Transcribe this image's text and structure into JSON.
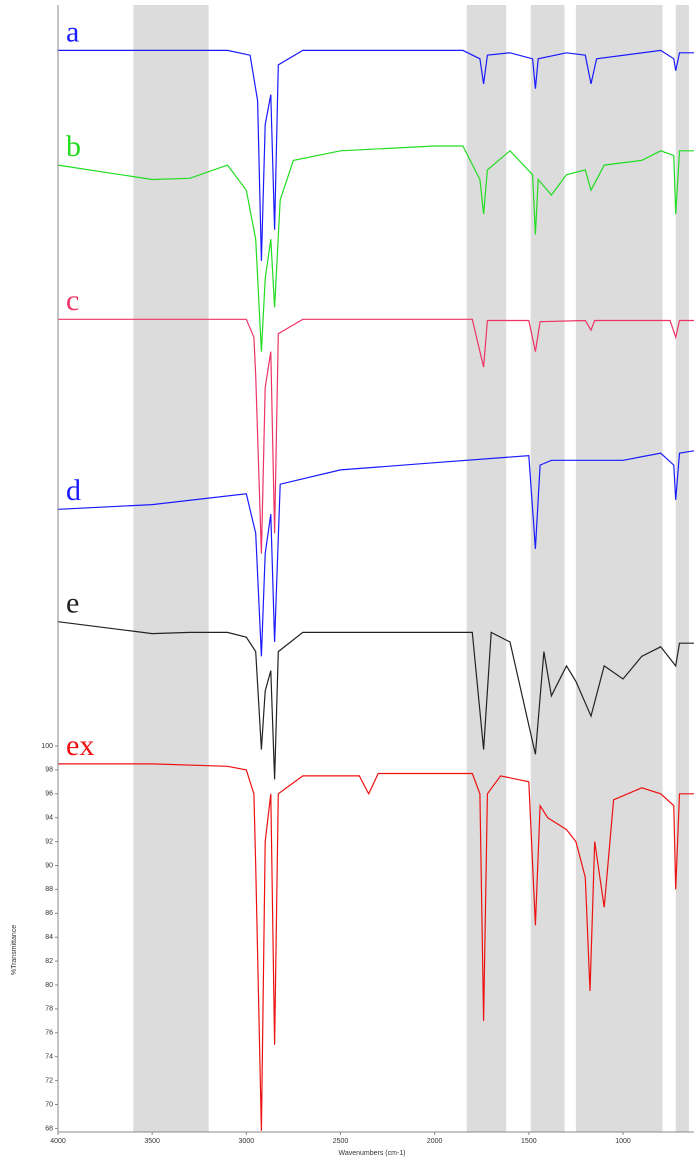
{
  "chart_data": {
    "type": "line",
    "xlabel": "Wavenumbers (cm-1)",
    "ylabel": "%Transmittance",
    "xlim": [
      4000,
      623
    ],
    "ylim": [
      67.7,
      162
    ],
    "xticks": [
      4000,
      3500,
      3000,
      2500,
      2000,
      1500,
      1000
    ],
    "yticks": [
      68,
      70,
      72,
      74,
      76,
      78,
      80,
      82,
      84,
      86,
      88,
      90,
      92,
      94,
      96,
      98,
      100
    ],
    "shaded_bands": [
      [
        3600,
        3200
      ],
      [
        1830,
        1620
      ],
      [
        1490,
        1310
      ],
      [
        1250,
        790
      ],
      [
        720,
        650
      ]
    ],
    "band_color": "#dcdcdc",
    "series": [
      {
        "name": "a",
        "color": "#1a1aff",
        "x": [
          4000,
          3100,
          2980,
          2940,
          2920,
          2900,
          2870,
          2850,
          2830,
          2700,
          1850,
          1760,
          1740,
          1720,
          1600,
          1480,
          1465,
          1450,
          1300,
          1200,
          1170,
          1140,
          800,
          730,
          720,
          700,
          623
        ],
        "values": [
          158.2,
          158.2,
          157.8,
          154,
          140.6,
          152,
          154.5,
          143.2,
          157,
          158.2,
          158.2,
          157.5,
          155.4,
          157.8,
          158,
          157.5,
          155,
          157.5,
          158,
          157.8,
          155.4,
          157.5,
          158.2,
          157.5,
          156.5,
          158,
          158
        ]
      },
      {
        "name": "b",
        "color": "#22dd22",
        "x": [
          4000,
          3500,
          3300,
          3100,
          3000,
          2950,
          2920,
          2900,
          2870,
          2850,
          2820,
          2750,
          2500,
          2000,
          1850,
          1760,
          1740,
          1720,
          1600,
          1480,
          1465,
          1450,
          1380,
          1300,
          1200,
          1170,
          1100,
          900,
          800,
          730,
          720,
          700,
          623
        ],
        "values": [
          148.6,
          147.4,
          147.5,
          148.6,
          146.5,
          142.4,
          133,
          139.1,
          142.4,
          136.7,
          145.7,
          149,
          149.8,
          150.2,
          150.2,
          147.4,
          144.5,
          148.2,
          149.8,
          147.8,
          142.8,
          147.4,
          146.1,
          147.8,
          148.2,
          146.5,
          148.6,
          149,
          149.8,
          149.4,
          144.5,
          149.8,
          149.8
        ]
      },
      {
        "name": "c",
        "color": "#ee3366",
        "x": [
          4000,
          3000,
          2960,
          2950,
          2920,
          2900,
          2870,
          2850,
          2830,
          2700,
          1800,
          1740,
          1720,
          1500,
          1465,
          1440,
          1200,
          1170,
          1150,
          750,
          720,
          700,
          623
        ],
        "values": [
          135.7,
          135.7,
          134.2,
          131,
          116.1,
          130,
          133,
          117.8,
          134.5,
          135.7,
          135.7,
          131.7,
          135.6,
          135.6,
          133,
          135.5,
          135.6,
          134.8,
          135.6,
          135.6,
          134.2,
          135.6,
          135.6
        ]
      },
      {
        "name": "d",
        "color": "#1a1aff",
        "x": [
          4000,
          3500,
          3000,
          2950,
          2920,
          2900,
          2870,
          2850,
          2820,
          2500,
          2000,
          1500,
          1465,
          1440,
          1380,
          1000,
          800,
          730,
          720,
          700,
          623
        ],
        "values": [
          119.8,
          120.2,
          121.1,
          117.8,
          107.5,
          116.1,
          119.4,
          108.7,
          121.9,
          123.1,
          123.7,
          124.3,
          116.5,
          123.5,
          123.9,
          123.9,
          124.5,
          123.5,
          120.6,
          124.5,
          124.7
        ]
      },
      {
        "name": "e",
        "color": "#222222",
        "x": [
          4000,
          3500,
          3300,
          3100,
          3000,
          2950,
          2920,
          2900,
          2870,
          2850,
          2830,
          2700,
          2000,
          1800,
          1740,
          1700,
          1600,
          1465,
          1420,
          1380,
          1300,
          1250,
          1170,
          1100,
          1000,
          900,
          800,
          720,
          700,
          623
        ],
        "values": [
          110.4,
          109.4,
          109.5,
          109.5,
          109.1,
          107.9,
          99.7,
          104.6,
          106.3,
          97.2,
          107.9,
          109.5,
          109.5,
          109.5,
          99.7,
          109.5,
          108.7,
          99.3,
          107.9,
          104.2,
          106.7,
          105.4,
          102.5,
          106.7,
          105.6,
          107.5,
          108.3,
          106.7,
          108.6,
          108.6
        ]
      },
      {
        "name": "ex",
        "color": "#ee1111",
        "x": [
          4000,
          3500,
          3100,
          3000,
          2960,
          2950,
          2920,
          2900,
          2870,
          2850,
          2830,
          2700,
          2400,
          2350,
          2300,
          1800,
          1760,
          1740,
          1720,
          1650,
          1500,
          1465,
          1440,
          1400,
          1300,
          1250,
          1200,
          1175,
          1150,
          1100,
          1050,
          900,
          800,
          730,
          720,
          700,
          623
        ],
        "values": [
          98.5,
          98.5,
          98.3,
          98,
          96,
          90,
          67.8,
          92,
          96,
          75,
          96,
          97.5,
          97.5,
          96,
          97.7,
          97.7,
          96,
          77,
          96,
          97.5,
          97,
          85,
          95,
          94,
          93,
          92,
          89,
          79.5,
          92,
          86.5,
          95.5,
          96.5,
          96,
          95,
          88,
          96,
          96
        ]
      }
    ]
  }
}
